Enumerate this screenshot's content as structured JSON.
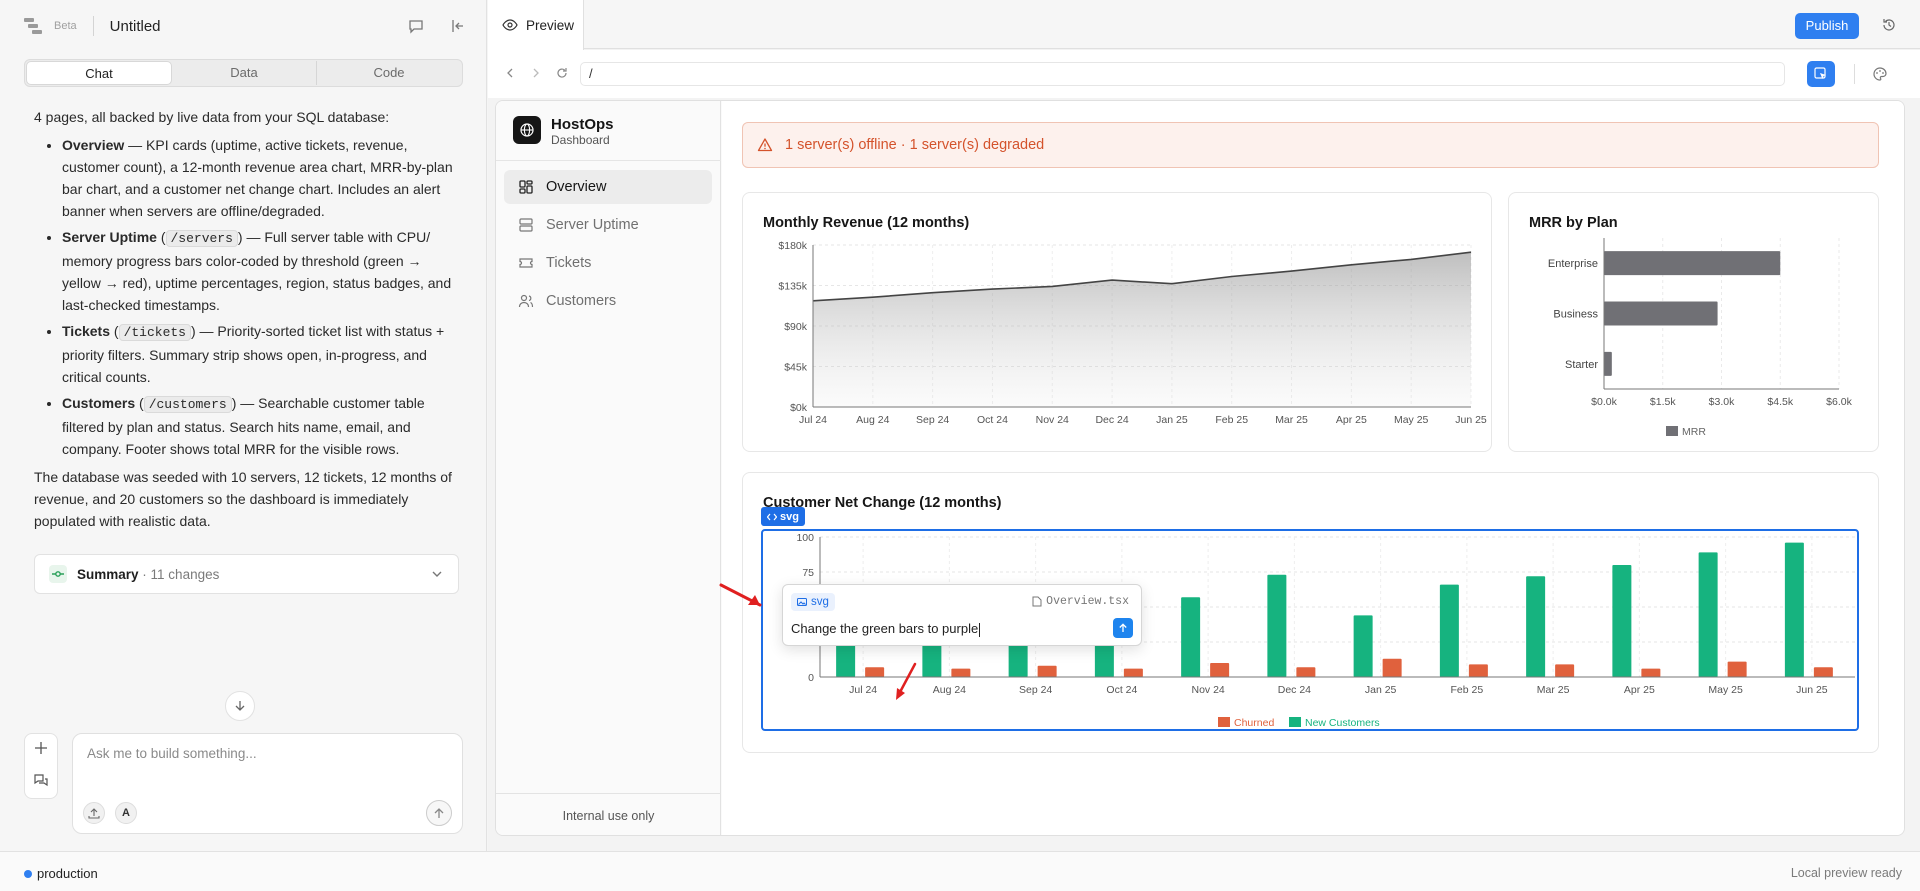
{
  "left_header": {
    "beta": "Beta",
    "title": "Untitled"
  },
  "mode_tabs": [
    "Chat",
    "Data",
    "Code"
  ],
  "message": {
    "intro": "4 pages, all backed by live data from your SQL database:",
    "items": [
      {
        "title": "Overview",
        "text": " — KPI cards (uptime, active tickets, revenue, customer count), a 12-month revenue area chart, MRR-by-plan bar chart, and a customer net change chart. Includes an alert banner when servers are offline/degraded."
      },
      {
        "title": "Server Uptime",
        "route": "/servers",
        "text": " — Full server table with CPU/ memory progress bars color-coded by threshold (green → yellow → red), uptime percentages, region, status badges, and last-checked timestamps."
      },
      {
        "title": "Tickets",
        "route": "/tickets",
        "text": " — Priority-sorted ticket list with status + priority filters. Summary strip shows open, in-progress, and critical counts."
      },
      {
        "title": "Customers",
        "route": "/customers",
        "text": " — Searchable customer table filtered by plan and status. Search hits name, email, and company. Footer shows total MRR for the visible rows."
      }
    ],
    "outro": "The database was seeded with 10 servers, 12 tickets, 12 months of revenue, and 20 customers so the dashboard is immediately populated with realistic data."
  },
  "summary": {
    "label": "Summary",
    "changes": "· 11 changes"
  },
  "chat_input": {
    "placeholder": "Ask me to build something..."
  },
  "preview": {
    "tab_label": "Preview",
    "publish": "Publish",
    "url": "/"
  },
  "app": {
    "brand": "HostOps",
    "brand_sub": "Dashboard",
    "nav": [
      "Overview",
      "Server Uptime",
      "Tickets",
      "Customers"
    ],
    "footer": "Internal use only",
    "alert": "1 server(s) offline · 1 server(s) degraded"
  },
  "chart_data": [
    {
      "type": "area",
      "title": "Monthly Revenue (12 months)",
      "x": [
        "Jul 24",
        "Aug 24",
        "Sep 24",
        "Oct 24",
        "Nov 24",
        "Dec 24",
        "Jan 25",
        "Feb 25",
        "Mar 25",
        "Apr 25",
        "May 25",
        "Jun 25"
      ],
      "values": [
        118,
        122,
        127,
        131,
        134,
        141,
        137,
        145,
        151,
        158,
        164,
        172
      ],
      "unit": "$k",
      "y_ticks": [
        "$0k",
        "$45k",
        "$90k",
        "$135k",
        "$180k"
      ],
      "ylim": [
        0,
        180
      ],
      "grid": true,
      "color": "#444444"
    },
    {
      "type": "bar",
      "orientation": "horizontal",
      "title": "MRR by Plan",
      "categories": [
        "Enterprise",
        "Business",
        "Starter"
      ],
      "values": [
        4.5,
        2.9,
        0.2
      ],
      "unit": "$k",
      "x_ticks": [
        "$0.0k",
        "$1.5k",
        "$3.0k",
        "$4.5k",
        "$6.0k"
      ],
      "xlim": [
        0,
        6
      ],
      "legend": "MRR",
      "color": "#707075"
    },
    {
      "type": "bar",
      "title": "Customer Net Change (12 months)",
      "categories": [
        "Jul 24",
        "Aug 24",
        "Sep 24",
        "Oct 24",
        "Nov 24",
        "Dec 24",
        "Jan 25",
        "Feb 25",
        "Mar 25",
        "Apr 25",
        "May 25",
        "Jun 25"
      ],
      "series": [
        {
          "name": "Churned",
          "color": "#e0613d",
          "values": [
            7,
            6,
            8,
            6,
            10,
            7,
            13,
            9,
            9,
            6,
            11,
            7
          ]
        },
        {
          "name": "New Customers",
          "color": "#16b37f",
          "values": [
            40,
            42,
            45,
            62,
            57,
            73,
            44,
            66,
            72,
            80,
            89,
            96
          ]
        }
      ],
      "y_ticks": [
        "0",
        "25",
        "50",
        "75",
        "100"
      ],
      "ylim": [
        0,
        100
      ],
      "grid": true
    }
  ],
  "inspector": {
    "tag": "svg",
    "popup_tag": "svg",
    "file": "Overview.tsx",
    "prompt": "Change the green bars to purple"
  },
  "status": {
    "env": "production",
    "ready": "Local preview ready"
  }
}
